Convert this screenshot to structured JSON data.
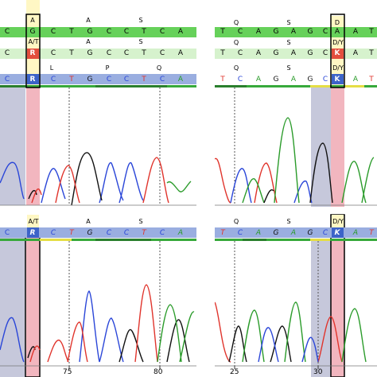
{
  "colors": {
    "consensus_green": "#66d15a",
    "pale_green": "#d6f2cd",
    "blue_row": "#9aaee0",
    "gray_shade": "#c6c8db",
    "pink_shade": "#f2b6bf",
    "cream": "#fff7c4",
    "red_base": "#e34e3e",
    "blue_base": "#3c63c8",
    "A": "#2a9b2a",
    "C": "#2a46d8",
    "G": "#111111",
    "T": "#e0342c"
  },
  "left_top": {
    "row1": [
      "A",
      "",
      "",
      "A",
      "",
      "",
      "S",
      ""
    ],
    "row2": [
      "C",
      "G",
      "C",
      "T",
      "G",
      "C",
      "C",
      "T",
      "C",
      "A"
    ],
    "row3": [
      "A/T",
      "",
      "",
      "A",
      "",
      "",
      "S",
      ""
    ],
    "row4": [
      "C",
      "R",
      "C",
      "T",
      "G",
      "C",
      "C",
      "T",
      "C",
      "A"
    ],
    "row5": [
      "",
      "L",
      "",
      "",
      "P",
      "",
      "",
      "Q",
      ""
    ],
    "row6": [
      "C",
      "R",
      "C",
      "T",
      "G",
      "C",
      "C",
      "T",
      "C",
      "A"
    ]
  },
  "right_top": {
    "row1": [
      "Q",
      "",
      "",
      "S",
      "",
      "",
      "D"
    ],
    "row2": [
      "T",
      "C",
      "A",
      "G",
      "A",
      "G",
      "C",
      "A",
      "A",
      "T"
    ],
    "row3": [
      "Q",
      "",
      "",
      "S",
      "",
      "",
      "D/Y"
    ],
    "row4": [
      "T",
      "C",
      "A",
      "G",
      "A",
      "G",
      "C",
      "K",
      "A",
      "T"
    ],
    "row5": [
      "Q",
      "",
      "",
      "S",
      "",
      "",
      "D/Y"
    ],
    "row6": [
      "T",
      "C",
      "A",
      "G",
      "A",
      "G",
      "C",
      "K",
      "A",
      "T"
    ]
  },
  "left_bottom": {
    "row1": [
      "A/T",
      "",
      "",
      "A",
      "",
      "",
      "S",
      ""
    ],
    "row2": [
      "C",
      "R",
      "C",
      "T",
      "G",
      "C",
      "C",
      "T",
      "C",
      "A"
    ]
  },
  "right_bottom": {
    "row1": [
      "Q",
      "",
      "",
      "S",
      "",
      "",
      "D/Y"
    ],
    "row2": [
      "T",
      "C",
      "A",
      "G",
      "A",
      "G",
      "C",
      "K",
      "A",
      "T"
    ]
  },
  "axis": {
    "left_ticks": [
      "75",
      "80"
    ],
    "right_ticks": [
      "25",
      "30"
    ]
  }
}
